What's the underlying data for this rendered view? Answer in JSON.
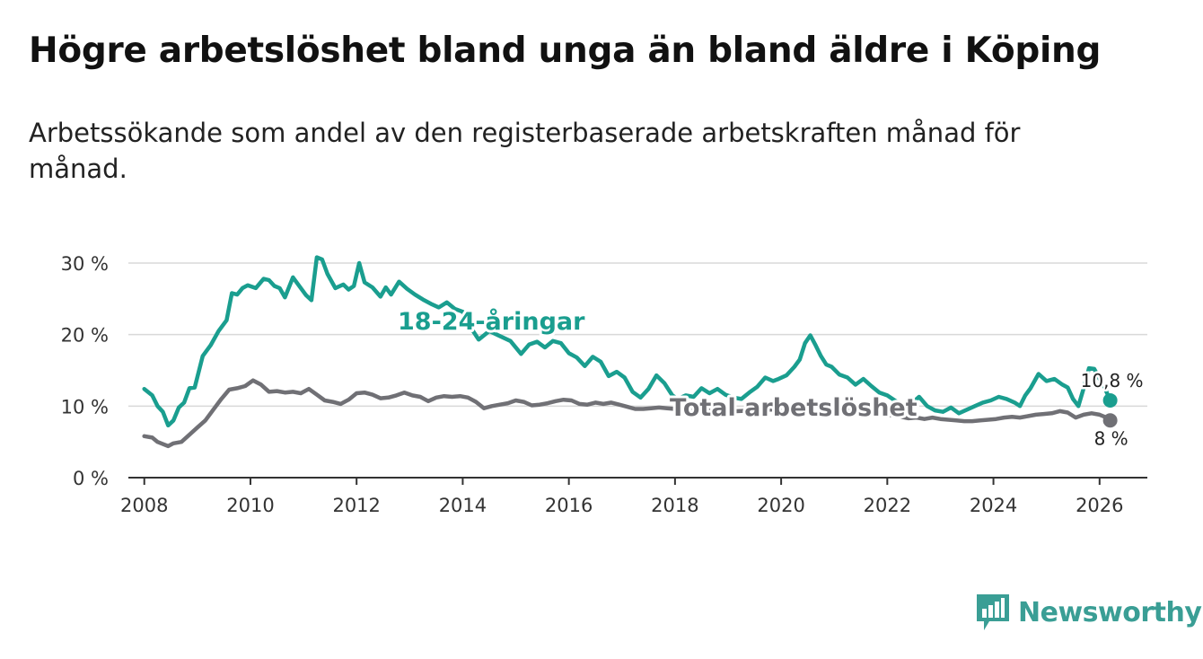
{
  "header": {
    "title": "Högre arbetslöshet bland unga än bland äldre i Köping",
    "subtitle": "Arbetssökande som andel av den registerbaserade arbetskraften månad för månad."
  },
  "brand": {
    "name": "Newsworthy",
    "icon": "bar-chart-speech-icon",
    "color": "#3a9e95"
  },
  "chart_data": {
    "type": "line",
    "title": "Högre arbetslöshet bland unga än bland äldre i Köping",
    "subtitle": "Arbetssökande som andel av den registerbaserade arbetskraften månad för månad.",
    "xlabel": "",
    "ylabel": "",
    "xlim": [
      2007.7,
      2026.9
    ],
    "ylim": [
      0,
      30
    ],
    "x_ticks": [
      2008,
      2010,
      2012,
      2014,
      2016,
      2018,
      2020,
      2022,
      2024,
      2026
    ],
    "x_tick_labels": [
      "2008",
      "2010",
      "2012",
      "2014",
      "2016",
      "2018",
      "2020",
      "2022",
      "2024",
      "2026"
    ],
    "y_ticks": [
      0,
      10,
      20,
      30
    ],
    "y_tick_labels": [
      "0 %",
      "10 %",
      "20 %",
      "30 %"
    ],
    "grid": true,
    "series": [
      {
        "name": "18-24-åringar",
        "label": "18-24-åringar",
        "color": "#1a9e8f",
        "end_label": "10,8 %",
        "x": [
          2008.0,
          2008.15,
          2008.25,
          2008.35,
          2008.45,
          2008.55,
          2008.65,
          2008.75,
          2008.85,
          2008.95,
          2009.1,
          2009.25,
          2009.4,
          2009.55,
          2009.65,
          2009.75,
          2009.85,
          2009.95,
          2010.1,
          2010.25,
          2010.35,
          2010.45,
          2010.55,
          2010.65,
          2010.8,
          2010.95,
          2011.05,
          2011.15,
          2011.25,
          2011.35,
          2011.45,
          2011.6,
          2011.75,
          2011.85,
          2011.95,
          2012.05,
          2012.15,
          2012.3,
          2012.45,
          2012.55,
          2012.65,
          2012.8,
          2012.95,
          2013.1,
          2013.25,
          2013.4,
          2013.55,
          2013.7,
          2013.85,
          2014.0,
          2014.15,
          2014.3,
          2014.5,
          2014.7,
          2014.9,
          2015.1,
          2015.25,
          2015.4,
          2015.55,
          2015.7,
          2015.85,
          2016.0,
          2016.15,
          2016.3,
          2016.45,
          2016.6,
          2016.75,
          2016.9,
          2017.05,
          2017.2,
          2017.35,
          2017.5,
          2017.65,
          2017.8,
          2017.95,
          2018.05,
          2018.2,
          2018.35,
          2018.5,
          2018.65,
          2018.8,
          2018.95,
          2019.1,
          2019.25,
          2019.4,
          2019.55,
          2019.7,
          2019.85,
          2019.95,
          2020.1,
          2020.25,
          2020.35,
          2020.45,
          2020.55,
          2020.65,
          2020.75,
          2020.85,
          2020.95,
          2021.1,
          2021.25,
          2021.4,
          2021.55,
          2021.7,
          2021.85,
          2022.0,
          2022.2,
          2022.4,
          2022.6,
          2022.75,
          2022.9,
          2023.05,
          2023.2,
          2023.35,
          2023.5,
          2023.65,
          2023.8,
          2023.95,
          2024.1,
          2024.25,
          2024.4,
          2024.5,
          2024.6,
          2024.7,
          2024.85,
          2025.0,
          2025.15,
          2025.3,
          2025.4,
          2025.5,
          2025.6,
          2025.7,
          2025.8,
          2025.9,
          2026.0,
          2026.1,
          2026.2
        ],
        "values": [
          12.4,
          11.5,
          10.0,
          9.2,
          7.3,
          8.0,
          9.8,
          10.5,
          12.5,
          12.6,
          17.0,
          18.5,
          20.5,
          22.0,
          25.8,
          25.6,
          26.5,
          26.9,
          26.5,
          27.8,
          27.6,
          26.8,
          26.5,
          25.2,
          28.0,
          26.5,
          25.5,
          24.8,
          30.8,
          30.5,
          28.5,
          26.5,
          27.0,
          26.3,
          26.8,
          30.0,
          27.3,
          26.6,
          25.3,
          26.6,
          25.6,
          27.4,
          26.4,
          25.6,
          24.9,
          24.3,
          23.8,
          24.5,
          23.6,
          23.2,
          21.0,
          19.3,
          20.5,
          19.8,
          19.1,
          17.3,
          18.6,
          19.0,
          18.2,
          19.1,
          18.8,
          17.4,
          16.8,
          15.6,
          16.9,
          16.2,
          14.2,
          14.8,
          14.0,
          12.0,
          11.2,
          12.4,
          14.3,
          13.2,
          11.5,
          11.0,
          11.5,
          11.3,
          12.5,
          11.8,
          12.4,
          11.6,
          11.2,
          11.0,
          11.9,
          12.7,
          14.0,
          13.5,
          13.8,
          14.3,
          15.5,
          16.5,
          18.8,
          19.9,
          18.5,
          17.0,
          15.8,
          15.5,
          14.4,
          14.0,
          13.0,
          13.8,
          12.8,
          11.9,
          11.5,
          10.5,
          10.0,
          11.3,
          10.0,
          9.4,
          9.2,
          9.8,
          9.0,
          9.5,
          10.0,
          10.5,
          10.8,
          11.3,
          11.0,
          10.5,
          10.0,
          11.5,
          12.5,
          14.5,
          13.5,
          13.8,
          13.0,
          12.6,
          11.0,
          10.0,
          12.5,
          15.3,
          15.2,
          13.8,
          12.5,
          10.8
        ]
      },
      {
        "name": "Total arbetslöshet",
        "label": "Total arbetslöshet",
        "color": "#707075",
        "end_label": "8 %",
        "x": [
          2008.0,
          2008.15,
          2008.25,
          2008.35,
          2008.45,
          2008.55,
          2008.7,
          2008.85,
          2009.0,
          2009.15,
          2009.3,
          2009.45,
          2009.6,
          2009.75,
          2009.9,
          2010.05,
          2010.2,
          2010.35,
          2010.5,
          2010.65,
          2010.8,
          2010.95,
          2011.1,
          2011.25,
          2011.4,
          2011.55,
          2011.7,
          2011.85,
          2012.0,
          2012.15,
          2012.3,
          2012.45,
          2012.6,
          2012.75,
          2012.9,
          2013.05,
          2013.2,
          2013.35,
          2013.5,
          2013.65,
          2013.8,
          2013.95,
          2014.1,
          2014.25,
          2014.4,
          2014.55,
          2014.7,
          2014.85,
          2015.0,
          2015.15,
          2015.3,
          2015.45,
          2015.6,
          2015.75,
          2015.9,
          2016.05,
          2016.2,
          2016.35,
          2016.5,
          2016.65,
          2016.8,
          2016.95,
          2017.1,
          2017.25,
          2017.4,
          2017.55,
          2017.7,
          2017.85,
          2018.0,
          2018.3,
          2018.6,
          2018.9,
          2019.2,
          2019.5,
          2019.8,
          2020.1,
          2020.4,
          2020.6,
          2020.8,
          2021.1,
          2021.4,
          2021.7,
          2022.0,
          2022.2,
          2022.4,
          2022.55,
          2022.7,
          2022.85,
          2023.0,
          2023.15,
          2023.3,
          2023.45,
          2023.6,
          2023.75,
          2023.9,
          2024.05,
          2024.2,
          2024.35,
          2024.5,
          2024.65,
          2024.8,
          2024.95,
          2025.1,
          2025.25,
          2025.4,
          2025.55,
          2025.7,
          2025.85,
          2026.0,
          2026.1,
          2026.2
        ],
        "values": [
          5.8,
          5.6,
          5.0,
          4.7,
          4.4,
          4.8,
          5.0,
          6.0,
          7.0,
          8.0,
          9.5,
          11.0,
          12.3,
          12.5,
          12.8,
          13.6,
          13.0,
          12.0,
          12.1,
          11.9,
          12.0,
          11.8,
          12.4,
          11.6,
          10.8,
          10.6,
          10.3,
          10.9,
          11.8,
          11.9,
          11.6,
          11.1,
          11.2,
          11.5,
          11.9,
          11.5,
          11.3,
          10.7,
          11.2,
          11.4,
          11.3,
          11.4,
          11.2,
          10.6,
          9.7,
          10.0,
          10.2,
          10.4,
          10.8,
          10.6,
          10.1,
          10.2,
          10.4,
          10.7,
          10.9,
          10.8,
          10.3,
          10.2,
          10.5,
          10.3,
          10.5,
          10.2,
          9.9,
          9.6,
          9.6,
          9.7,
          9.8,
          9.7,
          9.6,
          9.5,
          9.4,
          9.2,
          9.3,
          9.4,
          9.5,
          9.6,
          9.8,
          10.1,
          9.9,
          9.7,
          9.4,
          9.1,
          8.8,
          8.6,
          8.3,
          8.4,
          8.2,
          8.4,
          8.2,
          8.1,
          8.0,
          7.9,
          7.9,
          8.0,
          8.1,
          8.2,
          8.4,
          8.5,
          8.4,
          8.6,
          8.8,
          8.9,
          9.0,
          9.3,
          9.1,
          8.4,
          8.8,
          9.0,
          8.8,
          8.5,
          8.0
        ]
      }
    ]
  }
}
